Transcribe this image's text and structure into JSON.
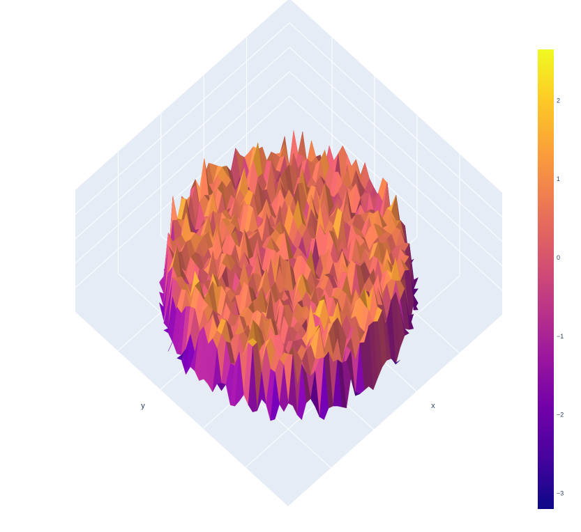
{
  "chart_data": {
    "type": "surface",
    "title": "",
    "xlabel": "x",
    "ylabel": "y",
    "zlabel": "",
    "grid": true,
    "surface": {
      "shape": "disc",
      "grid_size": 44,
      "z_mean": 0.5,
      "z_noise_amplitude": 1.0,
      "z_range": [
        -3.2,
        2.65
      ]
    },
    "colorbar": {
      "colorscale": "plasma",
      "colors": [
        "#0d0887",
        "#46039f",
        "#7201a8",
        "#9c179e",
        "#bd3786",
        "#d8576b",
        "#ed7953",
        "#fb9f3a",
        "#fdca26",
        "#f0f921"
      ],
      "range": [
        -3.2,
        2.65
      ],
      "ticks": [
        2,
        1,
        0,
        -1,
        -2,
        -3
      ],
      "tick_labels": [
        "2",
        "1",
        "0",
        "−1",
        "−2",
        "−3"
      ],
      "placement": "right"
    },
    "scene_background": "#e5ecf6",
    "grid_color": "#ffffff"
  }
}
